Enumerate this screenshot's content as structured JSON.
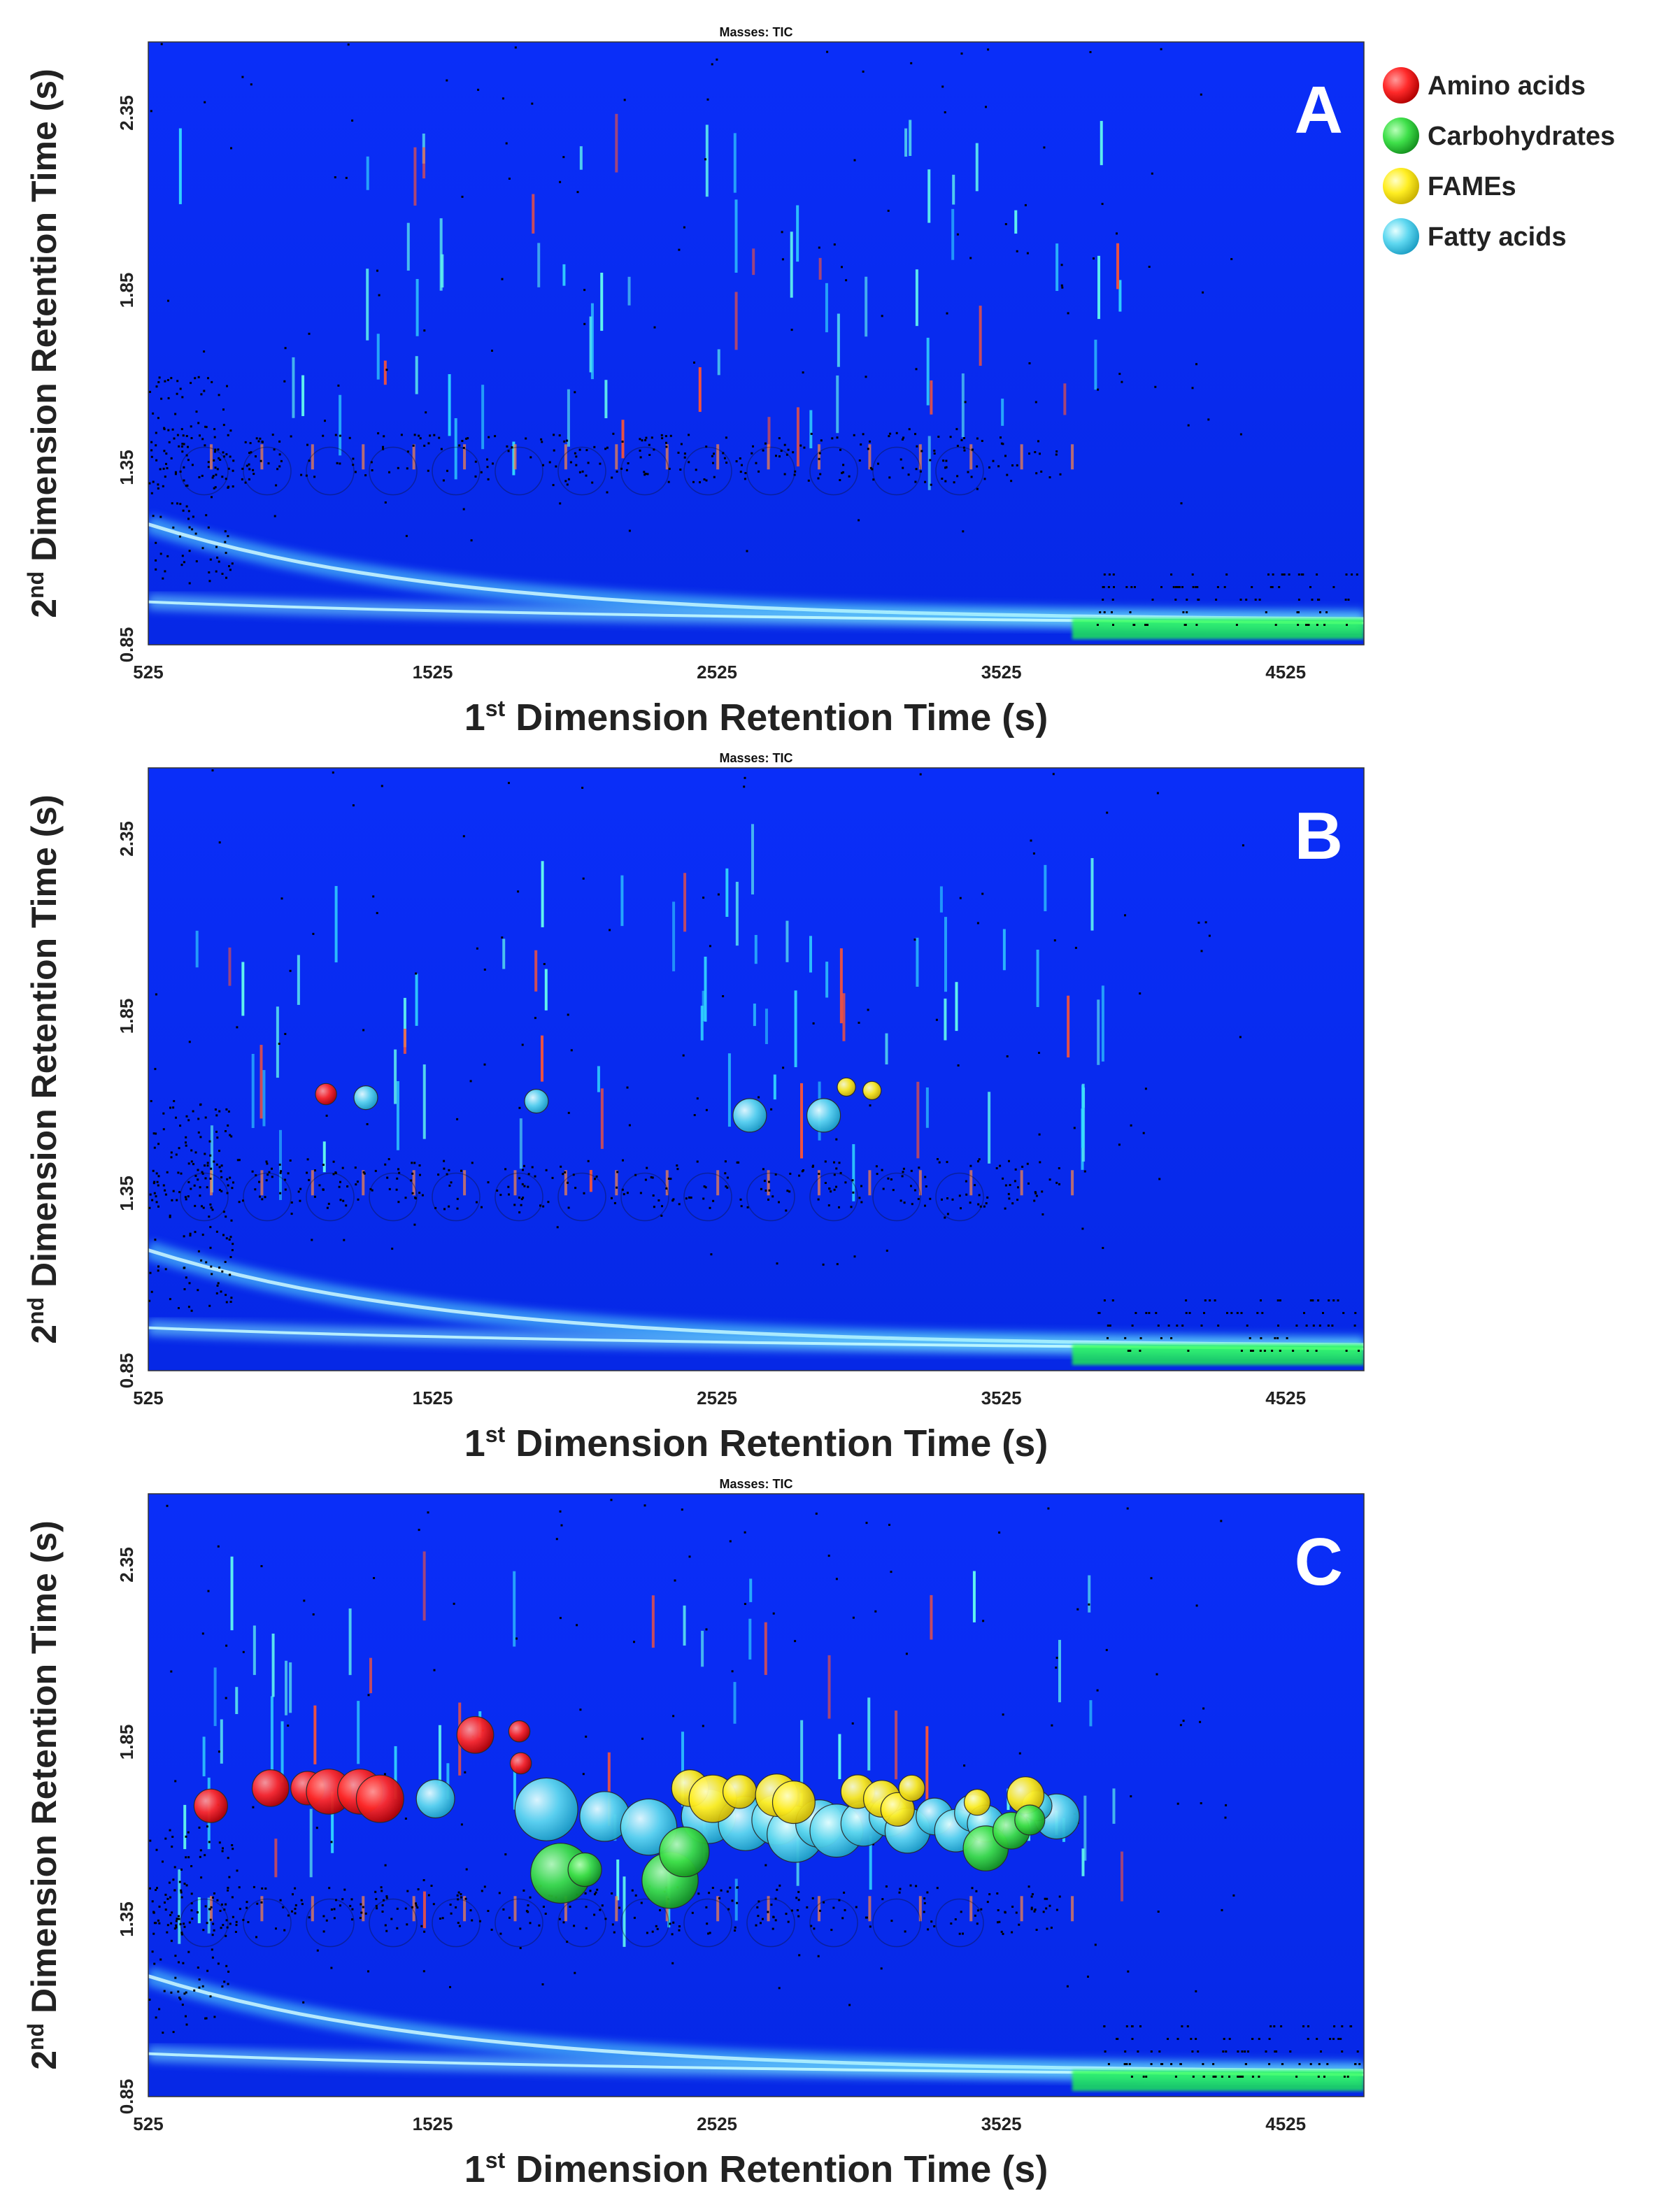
{
  "legend": {
    "items": [
      {
        "label": "Amino acids",
        "color": "#ff1a1a"
      },
      {
        "label": "Carbohydrates",
        "color": "#33e03a"
      },
      {
        "label": "FAMEs",
        "color": "#ffee00"
      },
      {
        "label": "Fatty acids",
        "color": "#44ccee"
      }
    ]
  },
  "colors": {
    "plot_background": "#0a2cf5",
    "baseline_band": "#22ff44"
  },
  "chart_data": [
    {
      "type": "scatter",
      "panel_label": "A",
      "title": "Masses: TIC",
      "xlabel_main": "1",
      "xlabel_sup": "st",
      "xlabel_rest": " Dimension Retention Time (s)",
      "ylabel_main": "2",
      "ylabel_sup": "nd",
      "ylabel_rest": " Dimension Retention Time (s)",
      "xticks": [
        "525",
        "1525",
        "2525",
        "3525",
        "4525"
      ],
      "yticks": [
        "0.85",
        "1.35",
        "1.85",
        "2.35"
      ],
      "xlim": [
        525,
        4800
      ],
      "ylim": [
        0.85,
        2.55
      ],
      "series": []
    },
    {
      "type": "scatter",
      "panel_label": "B",
      "title": "Masses: TIC",
      "xlabel_main": "1",
      "xlabel_sup": "st",
      "xlabel_rest": " Dimension Retention Time (s)",
      "ylabel_main": "2",
      "ylabel_sup": "nd",
      "ylabel_rest": " Dimension Retention Time (s)",
      "xticks": [
        "525",
        "1525",
        "2525",
        "3525",
        "4525"
      ],
      "yticks": [
        "0.85",
        "1.35",
        "1.85",
        "2.35"
      ],
      "xlim": [
        525,
        4800
      ],
      "ylim": [
        0.85,
        2.55
      ],
      "series": [
        {
          "category": "Fatty acids",
          "points": [
            [
              2640,
              1.57,
              0.01
            ],
            [
              2900,
              1.57,
              0.01
            ],
            [
              1890,
              1.61,
              0.005
            ],
            [
              1290,
              1.62,
              0.005
            ]
          ]
        },
        {
          "category": "Amino acids",
          "points": [
            [
              1150,
              1.63,
              0.004
            ]
          ]
        },
        {
          "category": "FAMEs",
          "points": [
            [
              2980,
              1.65,
              0.003
            ],
            [
              3070,
              1.64,
              0.003
            ]
          ]
        }
      ]
    },
    {
      "type": "scatter",
      "panel_label": "C",
      "title": "Masses: TIC",
      "xlabel_main": "1",
      "xlabel_sup": "st",
      "xlabel_rest": " Dimension Retention Time (s)",
      "ylabel_main": "2",
      "ylabel_sup": "nd",
      "ylabel_rest": " Dimension Retention Time (s)",
      "xticks": [
        "525",
        "1525",
        "2525",
        "3525",
        "4525"
      ],
      "yticks": [
        "0.85",
        "1.35",
        "1.85",
        "2.35"
      ],
      "xlim": [
        525,
        4800
      ],
      "ylim": [
        0.85,
        2.55
      ],
      "series": [
        {
          "category": "Amino acids",
          "points": [
            [
              745,
              1.67,
              0.01
            ],
            [
              955,
              1.72,
              0.012
            ],
            [
              1085,
              1.72,
              0.01
            ],
            [
              1160,
              1.71,
              0.018
            ],
            [
              1270,
              1.71,
              0.018
            ],
            [
              1340,
              1.69,
              0.02
            ],
            [
              1675,
              1.87,
              0.012
            ],
            [
              1830,
              1.88,
              0.004
            ],
            [
              1835,
              1.79,
              0.004
            ]
          ]
        },
        {
          "category": "Fatty acids",
          "points": [
            [
              1535,
              1.69,
              0.013
            ],
            [
              1925,
              1.66,
              0.035
            ],
            [
              2130,
              1.64,
              0.022
            ],
            [
              2285,
              1.61,
              0.028
            ],
            [
              2495,
              1.64,
              0.026
            ],
            [
              2625,
              1.62,
              0.026
            ],
            [
              2735,
              1.63,
              0.022
            ],
            [
              2800,
              1.59,
              0.028
            ],
            [
              2885,
              1.62,
              0.02
            ],
            [
              2945,
              1.6,
              0.025
            ],
            [
              3040,
              1.62,
              0.018
            ],
            [
              3130,
              1.64,
              0.014
            ],
            [
              3195,
              1.6,
              0.018
            ],
            [
              3290,
              1.64,
              0.012
            ],
            [
              3365,
              1.6,
              0.016
            ],
            [
              3425,
              1.65,
              0.012
            ],
            [
              3470,
              1.62,
              0.012
            ],
            [
              3720,
              1.64,
              0.018
            ],
            [
              3650,
              1.67,
              0.008
            ]
          ]
        },
        {
          "category": "FAMEs",
          "points": [
            [
              2430,
              1.72,
              0.012
            ],
            [
              2510,
              1.69,
              0.02
            ],
            [
              2605,
              1.71,
              0.01
            ],
            [
              2735,
              1.7,
              0.016
            ],
            [
              2795,
              1.68,
              0.016
            ],
            [
              3020,
              1.71,
              0.01
            ],
            [
              3105,
              1.69,
              0.012
            ],
            [
              3160,
              1.66,
              0.01
            ],
            [
              3210,
              1.72,
              0.006
            ],
            [
              3610,
              1.7,
              0.012
            ],
            [
              3440,
              1.68,
              0.006
            ]
          ]
        },
        {
          "category": "Carbohydrates",
          "points": [
            [
              1975,
              1.48,
              0.032
            ],
            [
              2360,
              1.46,
              0.028
            ],
            [
              2410,
              1.54,
              0.022
            ],
            [
              3470,
              1.55,
              0.018
            ],
            [
              3560,
              1.6,
              0.012
            ],
            [
              3625,
              1.63,
              0.008
            ],
            [
              2060,
              1.49,
              0.01
            ]
          ]
        }
      ]
    }
  ]
}
